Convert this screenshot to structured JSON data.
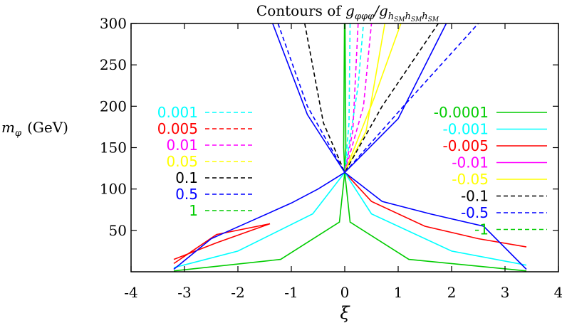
{
  "chart_data": {
    "type": "line",
    "title": "Contours of g_{φφφ}/g_{h_SM h_SM h_SM}",
    "title_parts": {
      "prefix": "Contours of ",
      "num": "g",
      "num_sub": "φφφ",
      "den": "/g",
      "den_sub": "h",
      "den_sub2": "SM",
      "den_sub3": "h",
      "den_sub4": "SM",
      "den_sub5": "h",
      "den_sub6": "SM"
    },
    "xlabel": "ξ",
    "ylabel_main": "m",
    "ylabel_sub": "φ",
    "ylabel_unit": "(GeV)",
    "xlim": [
      -4,
      4
    ],
    "ylim": [
      0,
      300
    ],
    "xticks": [
      "-4",
      "-3",
      "-2",
      "-1",
      "0",
      "1",
      "2",
      "3",
      "4"
    ],
    "yticks": [
      "50",
      "100",
      "150",
      "200",
      "250",
      "300"
    ],
    "grid": false,
    "legend_left": [
      {
        "label": "0.001",
        "color": "#00ffff",
        "dash": true
      },
      {
        "label": "0.005",
        "color": "#ff0000",
        "dash": true
      },
      {
        "label": "0.01",
        "color": "#ff00ff",
        "dash": true
      },
      {
        "label": "0.05",
        "color": "#ffff00",
        "dash": true
      },
      {
        "label": "0.1",
        "color": "#000000",
        "dash": true
      },
      {
        "label": "0.5",
        "color": "#0000ff",
        "dash": true
      },
      {
        "label": "1",
        "color": "#00cc00",
        "dash": true
      }
    ],
    "legend_right": [
      {
        "label": "-0.0001",
        "color": "#00cc00",
        "dash": false
      },
      {
        "label": "-0.001",
        "color": "#00ffff",
        "dash": false
      },
      {
        "label": "-0.005",
        "color": "#ff0000",
        "dash": false
      },
      {
        "label": "-0.01",
        "color": "#ff00ff",
        "dash": false
      },
      {
        "label": "-0.05",
        "color": "#ffff00",
        "dash": false
      },
      {
        "label": "-0.1",
        "color": "#000000",
        "dash": true
      },
      {
        "label": "-0.5",
        "color": "#0000ff",
        "dash": true
      },
      {
        "label": "-1",
        "color": "#00cc00",
        "dash": true
      }
    ],
    "series": [
      {
        "color": "#00cc00",
        "dash": false,
        "points": [
          [
            -0.005,
            300
          ],
          [
            -0.02,
            150
          ],
          [
            0,
            120
          ],
          [
            0.02,
            150
          ],
          [
            0.005,
            300
          ]
        ]
      },
      {
        "color": "#00ffff",
        "dash": true,
        "points": [
          [
            0.1,
            300
          ],
          [
            0.08,
            180
          ],
          [
            0,
            120
          ],
          [
            0.25,
            225
          ],
          [
            0.35,
            300
          ]
        ]
      },
      {
        "color": "#ff00ff",
        "dash": true,
        "points": [
          [
            0.25,
            300
          ],
          [
            0.15,
            170
          ],
          [
            0,
            120
          ],
          [
            0.35,
            200
          ],
          [
            0.5,
            300
          ]
        ]
      },
      {
        "color": "#ffff00",
        "dash": false,
        "points": [
          [
            0.75,
            300
          ],
          [
            0.4,
            170
          ],
          [
            0,
            120
          ],
          [
            0.55,
            210
          ],
          [
            1.05,
            300
          ]
        ]
      },
      {
        "color": "#000000",
        "dash": true,
        "points": [
          [
            -0.75,
            300
          ],
          [
            -0.4,
            180
          ],
          [
            0,
            120
          ],
          [
            0.7,
            200
          ],
          [
            1.75,
            300
          ]
        ]
      },
      {
        "color": "#0000ff",
        "dash": true,
        "points": [
          [
            -1.25,
            300
          ],
          [
            -0.7,
            200
          ],
          [
            0,
            120
          ],
          [
            1.1,
            200
          ],
          [
            2.5,
            300
          ]
        ]
      },
      {
        "color": "#ff0000",
        "dash": false,
        "points": [
          [
            -3.2,
            15
          ],
          [
            -2.4,
            35
          ],
          [
            -1.4,
            58
          ],
          [
            -2.4,
            45
          ],
          [
            -3.2,
            10
          ]
        ]
      },
      {
        "color": "#ff0000",
        "dash": false,
        "points": [
          [
            0,
            120
          ],
          [
            0.5,
            85
          ],
          [
            1.5,
            55
          ],
          [
            2.5,
            40
          ],
          [
            3.4,
            30
          ]
        ]
      },
      {
        "color": "#00ffff",
        "dash": false,
        "points": [
          [
            -3.2,
            5
          ],
          [
            -2,
            25
          ],
          [
            -0.6,
            70
          ],
          [
            0,
            120
          ],
          [
            0.5,
            70
          ],
          [
            2,
            25
          ],
          [
            3.4,
            8
          ]
        ]
      },
      {
        "color": "#00cc00",
        "dash": false,
        "points": [
          [
            -3.2,
            1
          ],
          [
            -1.2,
            15
          ],
          [
            -0.1,
            60
          ],
          [
            0,
            120
          ],
          [
            0.1,
            60
          ],
          [
            1.2,
            15
          ],
          [
            3.4,
            1
          ]
        ]
      },
      {
        "color": "#0000ff",
        "dash": false,
        "points": [
          [
            -3.2,
            3
          ],
          [
            -2.5,
            40
          ],
          [
            -1.8,
            60
          ],
          [
            -1.0,
            83
          ],
          [
            -0.5,
            100
          ],
          [
            0,
            120
          ],
          [
            0.7,
            85
          ],
          [
            1.6,
            70
          ],
          [
            2.6,
            55
          ],
          [
            3.4,
            3
          ]
        ]
      },
      {
        "color": "#0000ff",
        "dash": false,
        "points": [
          [
            -1.35,
            300
          ],
          [
            -0.7,
            190
          ],
          [
            0,
            120
          ],
          [
            1.0,
            185
          ],
          [
            1.9,
            300
          ]
        ]
      }
    ]
  }
}
